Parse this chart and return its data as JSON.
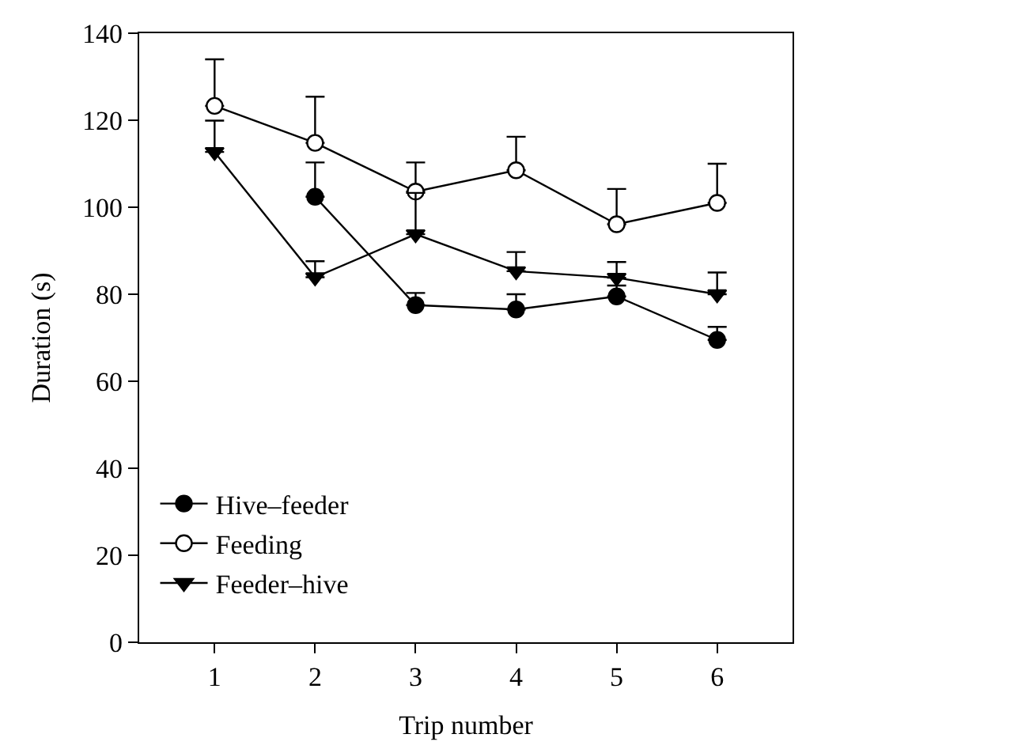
{
  "chart_data": {
    "type": "line",
    "xlabel": "Trip number",
    "ylabel": "Duration (s)",
    "x": [
      1,
      2,
      3,
      4,
      5,
      6
    ],
    "xlim": [
      0.25,
      6.75
    ],
    "xticks": [
      1,
      2,
      3,
      4,
      5,
      6
    ],
    "ylim": [
      0,
      140
    ],
    "yticks": [
      0,
      20,
      40,
      60,
      80,
      100,
      120,
      140
    ],
    "legend": "bottom left",
    "line_style": "solid",
    "series": [
      {
        "name": "Hive–feeder",
        "color": "#000000",
        "marker": "circle",
        "values": [
          null,
          102.4,
          77.5,
          76.5,
          79.5,
          69.5
        ],
        "errors": [
          null,
          [
            102.4,
            110.3
          ],
          [
            77.5,
            80.3
          ],
          [
            76.5,
            80
          ],
          [
            79.5,
            82
          ],
          [
            69.5,
            72.5
          ]
        ]
      },
      {
        "name": "Feeding",
        "color": "#000000",
        "colors": [
          "#ffffff",
          "#ffffff",
          "#ffffff",
          "#ffffff",
          "#ffffff",
          "#ffffff"
        ],
        "marker": "circle",
        "values": [
          123.3,
          114.8,
          103.6,
          108.5,
          96.1,
          101
        ],
        "errors": [
          [
            123.3,
            134
          ],
          [
            114.8,
            125.4
          ],
          [
            103.6,
            110.3
          ],
          [
            108.5,
            116.2
          ],
          [
            96.1,
            104.2
          ],
          [
            101,
            110
          ]
        ]
      },
      {
        "name": "Feeder–hive",
        "color": "#000000",
        "marker": "triangle",
        "values": [
          112.7,
          83.9,
          93.8,
          85.3,
          83.8,
          80
        ],
        "errors": [
          [
            112.7,
            119.9
          ],
          [
            83.9,
            87.6
          ],
          [
            93.8,
            103.3
          ],
          [
            85.3,
            89.7
          ],
          [
            83.8,
            87.4
          ],
          [
            80,
            85
          ]
        ]
      }
    ]
  }
}
